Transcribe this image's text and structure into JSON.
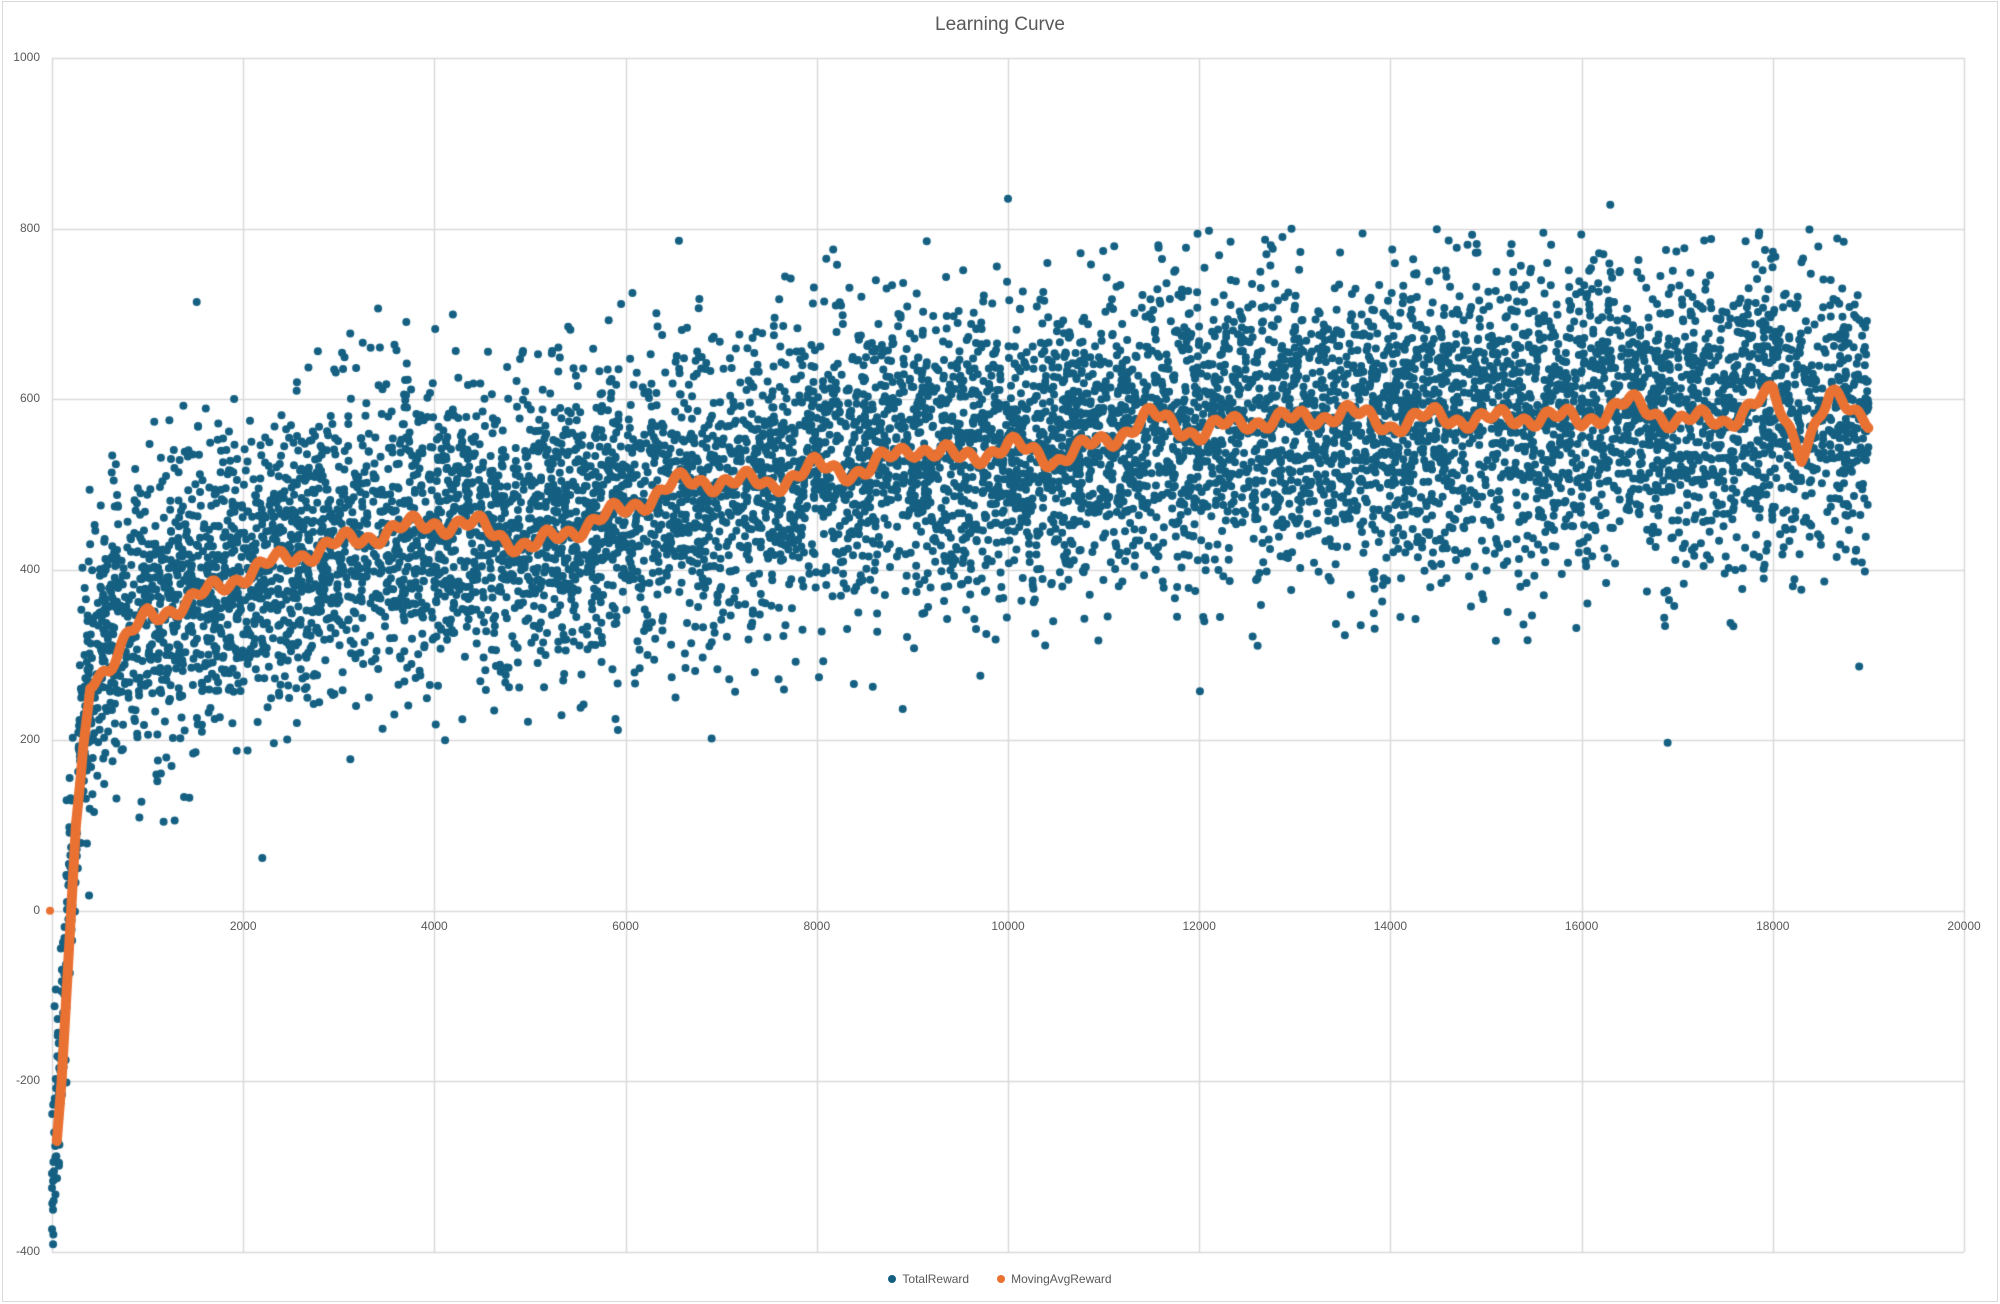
{
  "chart": {
    "title": "Learning Curve",
    "legend": [
      {
        "label": "TotalReward",
        "color": "#156082"
      },
      {
        "label": "MovingAvgReward",
        "color": "#E97132"
      }
    ]
  },
  "chart_data": {
    "type": "scatter",
    "title": "Learning Curve",
    "xlabel": "",
    "ylabel": "",
    "xlim": [
      0,
      20000
    ],
    "ylim": [
      -400,
      1000
    ],
    "x_ticks": [
      2000,
      4000,
      6000,
      8000,
      10000,
      12000,
      14000,
      16000,
      18000,
      20000
    ],
    "x_tick_labels": [
      "2000",
      "4000",
      "6000",
      "8000",
      "10000",
      "12000",
      "14000",
      "16000",
      "18000",
      "20000"
    ],
    "y_ticks": [
      -400,
      -200,
      0,
      200,
      400,
      600,
      800,
      1000
    ],
    "y_tick_labels": [
      "-400",
      "-200",
      "0",
      "200",
      "400",
      "600",
      "800",
      "1000"
    ],
    "grid": true,
    "legend_position": "bottom",
    "series": [
      {
        "name": "TotalReward",
        "color": "#156082",
        "marker": "circle",
        "n_points": 19000,
        "x_range": [
          0,
          19000
        ],
        "trend_center": [
          [
            0,
            -300
          ],
          [
            50,
            -250
          ],
          [
            150,
            -50
          ],
          [
            300,
            200
          ],
          [
            500,
            320
          ],
          [
            1000,
            360
          ],
          [
            2000,
            400
          ],
          [
            3000,
            430
          ],
          [
            4000,
            450
          ],
          [
            5000,
            440
          ],
          [
            6000,
            475
          ],
          [
            7000,
            500
          ],
          [
            8000,
            515
          ],
          [
            9000,
            540
          ],
          [
            10000,
            540
          ],
          [
            11000,
            555
          ],
          [
            12000,
            565
          ],
          [
            13000,
            575
          ],
          [
            14000,
            575
          ],
          [
            15000,
            578
          ],
          [
            16000,
            580
          ],
          [
            17000,
            580
          ],
          [
            18000,
            590
          ],
          [
            19000,
            585
          ]
        ],
        "spread_std": 85,
        "notable_points": [
          {
            "x": 10000,
            "y": 835
          },
          {
            "x": 16300,
            "y": 828
          },
          {
            "x": 15600,
            "y": 795
          },
          {
            "x": 9150,
            "y": 785
          },
          {
            "x": 2200,
            "y": 62
          },
          {
            "x": 0,
            "y": -325
          },
          {
            "x": 0,
            "y": -308
          },
          {
            "x": 6900,
            "y": 202
          },
          {
            "x": 16900,
            "y": 197
          }
        ]
      },
      {
        "name": "MovingAvgReward",
        "color": "#E97132",
        "x": [
          0,
          50,
          100,
          150,
          250,
          400,
          600,
          800,
          1000,
          1500,
          2000,
          2500,
          3000,
          3500,
          4000,
          4500,
          5000,
          5500,
          6000,
          6500,
          7000,
          7500,
          8000,
          8500,
          9000,
          9500,
          10000,
          10500,
          11000,
          11500,
          12000,
          12500,
          13000,
          13500,
          14000,
          14500,
          15000,
          15500,
          16000,
          16500,
          17000,
          17500,
          18000,
          18300,
          18600,
          19000
        ],
        "values": [
          0,
          -270,
          -200,
          -100,
          100,
          270,
          290,
          320,
          345,
          365,
          395,
          415,
          430,
          445,
          455,
          450,
          425,
          450,
          470,
          500,
          505,
          500,
          520,
          515,
          545,
          530,
          545,
          530,
          550,
          580,
          560,
          575,
          575,
          585,
          570,
          580,
          575,
          580,
          575,
          595,
          575,
          575,
          605,
          540,
          600,
          580
        ]
      }
    ]
  }
}
